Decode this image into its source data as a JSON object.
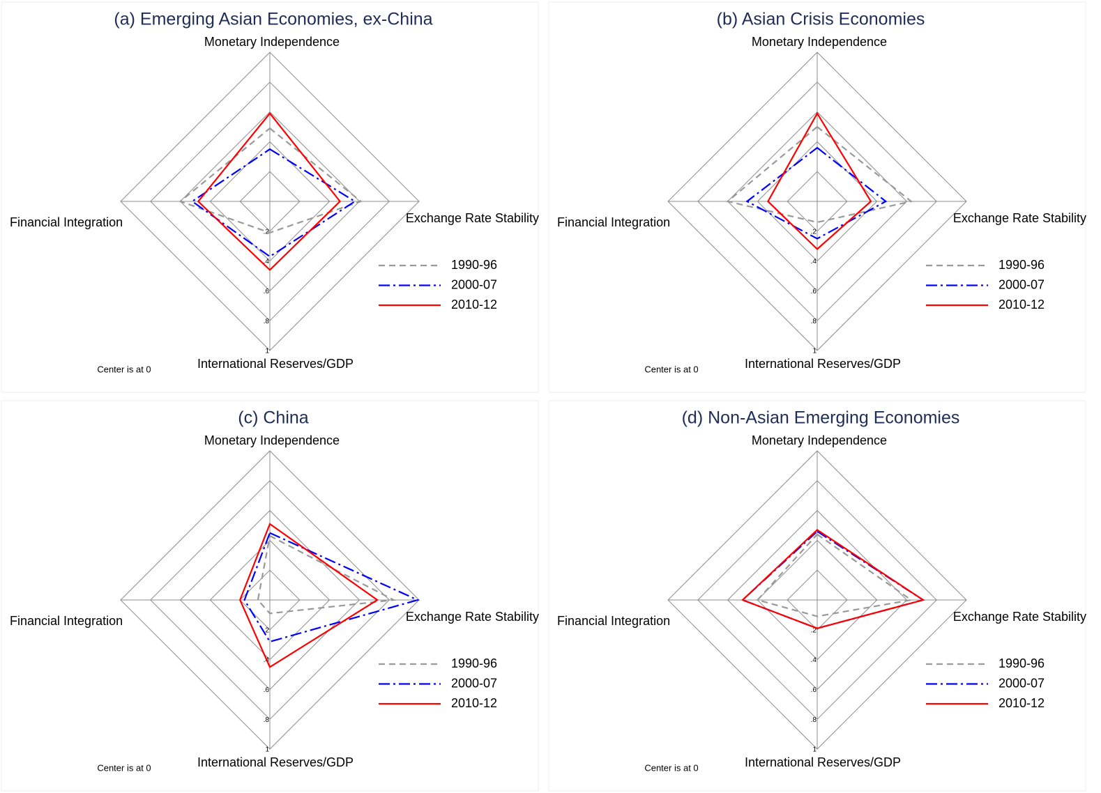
{
  "chart_data": [
    {
      "type": "radar",
      "title": "(a) Emerging Asian Economies, ex-China",
      "axes": [
        "Monetary Independence",
        "Exchange Rate Stability",
        "International Reserves/GDP",
        "Financial Integration"
      ],
      "rlim": [
        0,
        1
      ],
      "rticks": [
        {
          "value": 0.2,
          "label": ".2"
        },
        {
          "value": 0.4,
          "label": ".4"
        },
        {
          "value": 0.6,
          "label": ".6"
        },
        {
          "value": 0.8,
          "label": ".8"
        },
        1
      ],
      "note": "Center is at 0",
      "series": [
        {
          "name": "1990-96",
          "color": "#999999",
          "linestyle": "dashed",
          "values": [
            0.49,
            0.61,
            0.21,
            0.6
          ]
        },
        {
          "name": "2000-07",
          "color": "#0000ff",
          "linestyle": "dashdot",
          "values": [
            0.35,
            0.57,
            0.37,
            0.52
          ]
        },
        {
          "name": "2010-12",
          "color": "#ff0000",
          "linestyle": "solid",
          "values": [
            0.59,
            0.47,
            0.46,
            0.48
          ]
        }
      ]
    },
    {
      "type": "radar",
      "title": "(b) Asian Crisis Economies",
      "axes": [
        "Monetary Independence",
        "Exchange Rate Stability",
        "International Reserves/GDP",
        "Financial Integration"
      ],
      "rlim": [
        0,
        1
      ],
      "rticks": [
        {
          "value": 0.2,
          "label": ".2"
        },
        {
          "value": 0.4,
          "label": ".4"
        },
        {
          "value": 0.6,
          "label": ".6"
        },
        {
          "value": 0.8,
          "label": ".8"
        },
        1
      ],
      "note": "Center is at 0",
      "series": [
        {
          "name": "1990-96",
          "color": "#999999",
          "linestyle": "dashed",
          "values": [
            0.5,
            0.63,
            0.14,
            0.6
          ]
        },
        {
          "name": "2000-07",
          "color": "#0000ff",
          "linestyle": "dashdot",
          "values": [
            0.36,
            0.46,
            0.25,
            0.47
          ]
        },
        {
          "name": "2010-12",
          "color": "#ff0000",
          "linestyle": "solid",
          "values": [
            0.59,
            0.36,
            0.32,
            0.33
          ]
        }
      ]
    },
    {
      "type": "radar",
      "title": "(c) China",
      "axes": [
        "Monetary Independence",
        "Exchange Rate Stability",
        "International Reserves/GDP",
        "Financial Integration"
      ],
      "rlim": [
        0,
        1
      ],
      "rticks": [
        {
          "value": 0.2,
          "label": ".2"
        },
        {
          "value": 0.4,
          "label": ".4"
        },
        {
          "value": 0.6,
          "label": ".6"
        },
        {
          "value": 0.8,
          "label": ".8"
        },
        1
      ],
      "note": "Center is at 0",
      "series": [
        {
          "name": "1990-96",
          "color": "#999999",
          "linestyle": "dashed",
          "values": [
            0.43,
            0.83,
            0.09,
            0.08
          ]
        },
        {
          "name": "2000-07",
          "color": "#0000ff",
          "linestyle": "dashdot",
          "values": [
            0.45,
            0.99,
            0.28,
            0.17
          ]
        },
        {
          "name": "2010-12",
          "color": "#ff0000",
          "linestyle": "solid",
          "values": [
            0.51,
            0.72,
            0.45,
            0.2
          ]
        }
      ]
    },
    {
      "type": "radar",
      "title": "(d) Non-Asian Emerging Economies",
      "axes": [
        "Monetary Independence",
        "Exchange Rate Stability",
        "International Reserves/GDP",
        "Financial Integration"
      ],
      "rlim": [
        0,
        1
      ],
      "rticks": [
        {
          "value": 0.2,
          "label": ".2"
        },
        {
          "value": 0.4,
          "label": ".4"
        },
        {
          "value": 0.6,
          "label": ".6"
        },
        {
          "value": 0.8,
          "label": ".8"
        },
        1
      ],
      "note": "Center is at 0",
      "series": [
        {
          "name": "1990-96",
          "color": "#999999",
          "linestyle": "dashed",
          "values": [
            0.44,
            0.63,
            0.11,
            0.4
          ]
        },
        {
          "name": "2000-07",
          "color": "#0000ff",
          "linestyle": "dashdot",
          "values": [
            0.46,
            0.71,
            0.19,
            0.5
          ]
        },
        {
          "name": "2010-12",
          "color": "#ff0000",
          "linestyle": "solid",
          "values": [
            0.47,
            0.71,
            0.19,
            0.5
          ]
        }
      ]
    }
  ]
}
